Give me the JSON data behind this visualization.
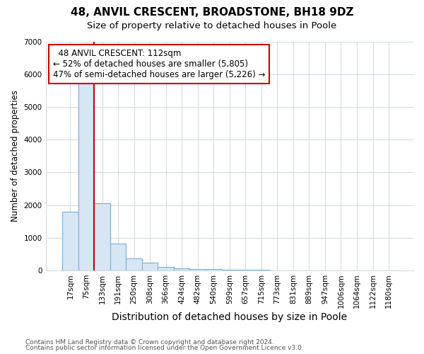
{
  "title": "48, ANVIL CRESCENT, BROADSTONE, BH18 9DZ",
  "subtitle": "Size of property relative to detached houses in Poole",
  "xlabel": "Distribution of detached houses by size in Poole",
  "ylabel": "Number of detached properties",
  "footnote1": "Contains HM Land Registry data © Crown copyright and database right 2024.",
  "footnote2": "Contains public sector information licensed under the Open Government Licence v3.0.",
  "annotation_line1": "48 ANVIL CRESCENT: 112sqm",
  "annotation_line2": "← 52% of detached houses are smaller (5,805)",
  "annotation_line3": "47% of semi-detached houses are larger (5,226) →",
  "categories": [
    "17sqm",
    "75sqm",
    "133sqm",
    "191sqm",
    "250sqm",
    "308sqm",
    "366sqm",
    "424sqm",
    "482sqm",
    "540sqm",
    "599sqm",
    "657sqm",
    "715sqm",
    "773sqm",
    "831sqm",
    "889sqm",
    "947sqm",
    "1006sqm",
    "1064sqm",
    "1122sqm",
    "1180sqm"
  ],
  "values": [
    1800,
    5750,
    2050,
    820,
    370,
    230,
    110,
    65,
    50,
    30,
    20,
    15,
    12,
    0,
    0,
    0,
    0,
    0,
    0,
    0,
    0
  ],
  "bar_facecolor": "#d6e6f5",
  "bar_edgecolor": "#7aaed6",
  "marker_color": "#cc0000",
  "annotation_box_color": "#cc0000",
  "grid_color": "#d0dde8",
  "background_color": "#ffffff",
  "plot_bg_color": "#ffffff",
  "ylim": [
    0,
    7000
  ],
  "yticks": [
    0,
    1000,
    2000,
    3000,
    4000,
    5000,
    6000,
    7000
  ],
  "title_fontsize": 11,
  "subtitle_fontsize": 9.5,
  "xlabel_fontsize": 10,
  "ylabel_fontsize": 8.5,
  "tick_fontsize": 7.5,
  "annotation_fontsize": 8.5,
  "footnote_fontsize": 6.5
}
